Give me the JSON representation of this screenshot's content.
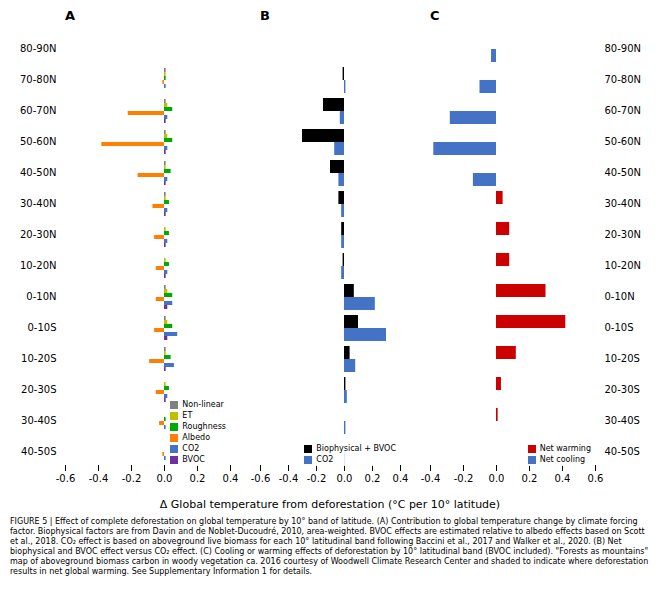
{
  "chart_data": [
    {
      "type": "bar",
      "orientation": "horizontal",
      "title": "A",
      "legend": "lower right",
      "categories": [
        "80-90N",
        "70-80N",
        "60-70N",
        "50-60N",
        "40-50N",
        "30-40N",
        "20-30N",
        "10-20N",
        "0-10N",
        "0-10S",
        "10-20S",
        "20-30S",
        "30-40S",
        "40-50S"
      ],
      "series": [
        {
          "name": "Non-linear",
          "color": "#808080",
          "values": [
            0.0,
            0.01,
            0.01,
            0.01,
            0.01,
            0.01,
            0.0,
            0.0,
            0.01,
            0.01,
            0.01,
            0.0,
            0.0,
            0.0
          ]
        },
        {
          "name": "ET",
          "color": "#bfbf00",
          "values": [
            0.0,
            0.01,
            0.02,
            0.02,
            0.01,
            0.01,
            0.01,
            0.01,
            0.02,
            0.02,
            0.01,
            0.01,
            0.0,
            0.0
          ]
        },
        {
          "name": "Roughness",
          "color": "#00aa00",
          "values": [
            0.0,
            0.01,
            0.05,
            0.05,
            0.04,
            0.03,
            0.03,
            0.03,
            0.05,
            0.05,
            0.04,
            0.03,
            0.01,
            0.0
          ]
        },
        {
          "name": "Albedo",
          "color": "#ff8000",
          "values": [
            0.0,
            -0.01,
            -0.22,
            -0.38,
            -0.16,
            -0.07,
            -0.06,
            -0.05,
            -0.05,
            -0.06,
            -0.09,
            -0.05,
            -0.03,
            -0.01
          ]
        },
        {
          "name": "CO2",
          "color": "#4472c4",
          "values": [
            0.0,
            0.01,
            0.02,
            0.02,
            0.02,
            0.02,
            0.02,
            0.02,
            0.05,
            0.08,
            0.06,
            0.02,
            0.01,
            0.01
          ]
        },
        {
          "name": "BVOC",
          "color": "#7030a0",
          "values": [
            0.0,
            0.0,
            0.01,
            0.01,
            0.01,
            0.01,
            0.01,
            0.01,
            0.02,
            0.02,
            0.01,
            0.01,
            0.0,
            0.0
          ]
        }
      ],
      "xlim": [
        -0.6,
        0.4
      ],
      "xticks": [
        -0.6,
        -0.4,
        -0.2,
        {
          "value": 0.0,
          "label": "0.0"
        },
        0.2,
        0.4
      ]
    },
    {
      "type": "bar",
      "orientation": "horizontal",
      "title": "B",
      "legend": "lower right",
      "tick_labels": "x",
      "categories": [
        "80-90N",
        "70-80N",
        "60-70N",
        "50-60N",
        "40-50N",
        "30-40N",
        "20-30N",
        "10-20N",
        "0-10N",
        "0-10S",
        "10-20S",
        "20-30S",
        "30-40S",
        "40-50S"
      ],
      "series": [
        {
          "name": "Biophysical + BVOC",
          "color": "#000000",
          "values": [
            0.0,
            -0.01,
            -0.15,
            -0.3,
            -0.1,
            -0.04,
            -0.02,
            -0.01,
            0.07,
            0.1,
            0.04,
            0.01,
            0.0,
            0.0
          ]
        },
        {
          "name": "CO2",
          "color": "#4472c4",
          "values": [
            0.0,
            0.01,
            -0.03,
            -0.07,
            -0.04,
            -0.02,
            -0.02,
            -0.02,
            0.22,
            0.3,
            0.08,
            0.02,
            0.01,
            0.01
          ]
        }
      ],
      "xlim": [
        -0.6,
        0.4
      ],
      "xticks": [
        -0.6,
        -0.4,
        -0.2,
        {
          "value": 0.0,
          "label": "0.0"
        },
        0.2,
        0.4
      ]
    },
    {
      "type": "bar",
      "orientation": "horizontal",
      "title": "C",
      "legend": "lower right",
      "categories": [
        "80-90N",
        "70-80N",
        "60-70N",
        "50-60N",
        "40-50N",
        "30-40N",
        "20-30N",
        "10-20N",
        "0-10N",
        "0-10S",
        "10-20S",
        "20-30S",
        "30-40S",
        "40-50S"
      ],
      "series": [
        {
          "name": "Net warming",
          "color": "#cc0000",
          "values": [
            0.0,
            0.0,
            0.0,
            0.0,
            0.0,
            0.04,
            0.08,
            0.08,
            0.3,
            0.42,
            0.12,
            0.03,
            0.01,
            0.0
          ]
        },
        {
          "name": "Net cooling",
          "color": "#4472c4",
          "values": [
            -0.03,
            -0.1,
            -0.28,
            -0.38,
            -0.14,
            0.0,
            0.0,
            0.0,
            0.0,
            0.0,
            0.0,
            0.0,
            0.0,
            0.0
          ]
        }
      ],
      "xlim": [
        -0.4,
        0.6
      ],
      "xticks": [
        -0.4,
        -0.2,
        {
          "value": 0.0,
          "label": "0.0"
        },
        0.2,
        0.4,
        0.6
      ]
    }
  ],
  "xlabel": "Δ Global temperature from deforestation (°C per 10° latitude)",
  "caption": "FIGURE 5 | Effect of complete deforestation on global temperature by 10° band of latitude. (A) Contribution to global temperature change by climate forcing factor. Biophysical factors are from Davin and de Noblet-Ducoudré, 2010, area-weighted. BVOC effects are estimated relative to albedo effects based on Scott et al., 2018. CO₂ effect is based on aboveground live biomass for each 10° latitudinal band following Baccini et al., 2017 and Walker et al., 2020. (B) Net biophysical and BVOC effect versus CO₂ effect. (C) Cooling or warming effects of deforestation by 10° latitudinal band (BVOC included). \"Forests as mountains\" map of aboveground biomass carbon in woody vegetation ca. 2016 courtesy of Woodwell Climate Research Center and shaded to indicate where deforestation results in net global warming. See Supplementary Information 1 for details."
}
